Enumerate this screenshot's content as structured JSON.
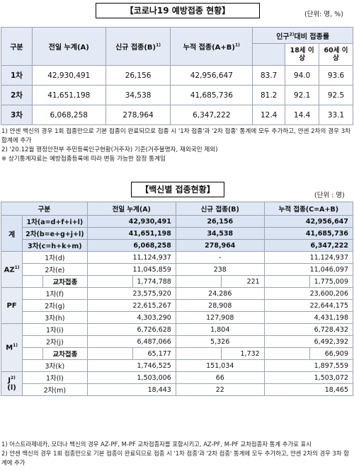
{
  "table1": {
    "title": "【코로나19 예방접종 현황】",
    "unit": "(단위: 명, %)",
    "headers": {
      "gubun": "구분",
      "prev": "전일 누계(A)",
      "new": "신규 접종(B)",
      "new_sup": "1)",
      "cum": "누적 접종(A+B)",
      "cum_sup": "1)",
      "pop_pre": "인구",
      "pop_sup": "2)",
      "pop_post": "대비 접종률",
      "age18": "18세 이상",
      "age60": "60세 이상"
    },
    "rows": [
      {
        "label": "1차",
        "prev": "42,930,491",
        "new": "26,156",
        "cum": "42,956,647",
        "r_all": "83.7",
        "r18": "94.0",
        "r60": "93.6"
      },
      {
        "label": "2차",
        "prev": "41,651,198",
        "new": "34,538",
        "cum": "41,685,736",
        "r_all": "81.2",
        "r18": "92.1",
        "r60": "92.5"
      },
      {
        "label": "3차",
        "prev": "6,068,258",
        "new": "278,964",
        "cum": "6,347,222",
        "r_all": "12.4",
        "r18": "14.4",
        "r60": "33.1"
      }
    ],
    "notes": [
      "1) 얀센 백신의 경우 1회 접종만으로 기본 접종이 완료되므로 접종 시 '1차 접종'과 '2차 접종' 통계에 모두 추가하고, 얀센 2차의 경우 3차 합계에 추가",
      "2) '20.12월 행정안전부 주민등록인구현황(거주자) 기준(거주불명자, 재외국민 제외)",
      "※ 상기통계자료는 예방접종등록에 따라 변동 가능한 잠정 통계임"
    ]
  },
  "table2": {
    "title": "【백신별 접종현황】",
    "unit": "(단위 : 명)",
    "headers": {
      "gubun": "구분",
      "prev": "전일 누계(A)",
      "new": "신규 접종(B)",
      "cum": "누적 접종(C=A+B)"
    },
    "total": {
      "cat": "계",
      "rows": [
        {
          "label": "1차(a=d+f+i+l)",
          "prev": "42,930,491",
          "new": "26,156",
          "cum": "42,956,647"
        },
        {
          "label": "2차(b=e+g+j+l)",
          "prev": "41,651,198",
          "new": "34,538",
          "cum": "41,685,736"
        },
        {
          "label": "3차(c=h+k+m)",
          "prev": "6,068,258",
          "new": "278,964",
          "cum": "6,347,222"
        }
      ]
    },
    "az": {
      "cat": "AZ",
      "sup": "1)",
      "rows": [
        {
          "label": "1차(d)",
          "prev": "11,124,937",
          "new": "-",
          "cum": "11,124,937"
        },
        {
          "label": "2차(e)",
          "prev": "11,045,859",
          "new": "238",
          "cum": "11,046,097"
        }
      ],
      "cross": {
        "label": "교차접종",
        "prev": "1,774,788",
        "new": "221",
        "cum": "1,775,009"
      }
    },
    "pf": {
      "cat": "PF",
      "rows": [
        {
          "label": "1차(f)",
          "prev": "23,575,920",
          "new": "24,286",
          "cum": "23,600,206"
        },
        {
          "label": "2차(g)",
          "prev": "22,615,267",
          "new": "28,908",
          "cum": "22,644,175"
        },
        {
          "label": "3차(h)",
          "prev": "4,303,290",
          "new": "127,908",
          "cum": "4,431,198"
        }
      ]
    },
    "m": {
      "cat": "M",
      "sup": "1)",
      "rows": [
        {
          "label": "1차(i)",
          "prev": "6,726,628",
          "new": "1,804",
          "cum": "6,728,432"
        },
        {
          "label": "2차(j)",
          "prev": "6,487,066",
          "new": "5,326",
          "cum": "6,492,392"
        }
      ],
      "cross": {
        "label": "교차접종",
        "prev": "65,177",
        "new": "1,732",
        "cum": "66,909"
      },
      "row3": {
        "label": "3차(k)",
        "prev": "1,746,525",
        "new": "151,034",
        "cum": "1,897,559"
      }
    },
    "j": {
      "cat": "J",
      "sup": "2)",
      "cat_suffix": "(l)",
      "rows": [
        {
          "label": "1차(l)",
          "prev": "1,503,006",
          "new": "66",
          "cum": "1,503,072"
        },
        {
          "label": "2차(m)",
          "prev": "18,443",
          "new": "22",
          "cum": "18,465"
        }
      ]
    },
    "notes": [
      "1) 아스트라제네카, 모더나 백신의 경우 AZ-PF, M-PF 교차접종자를 포함시키고, AZ-PF, M-PF 교차접종자 통계 추가로 표시",
      "2) 얀센 백신의 경우 1회 접종만으로 기본 접종이 완료되므로 접종 시 '1차 접종'과 '2차 접종' 통계에 모두 추가하고, 얀센 2차의 경우 3차 합계에 추가"
    ]
  }
}
